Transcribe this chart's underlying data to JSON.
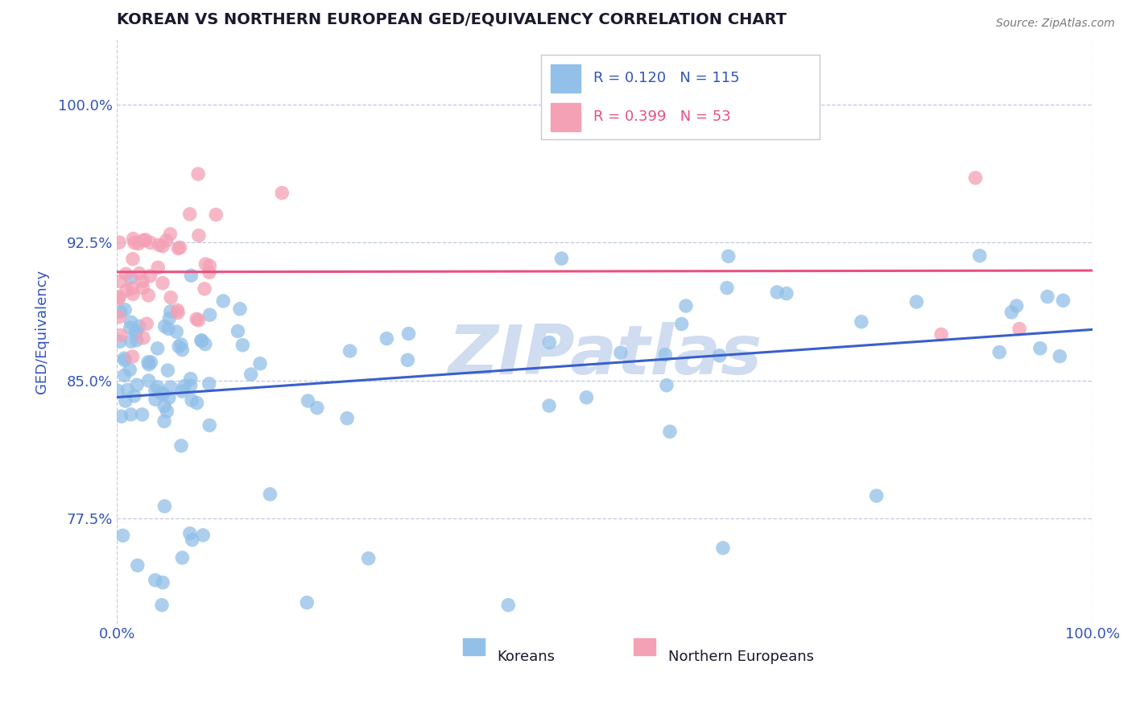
{
  "title": "KOREAN VS NORTHERN EUROPEAN GED/EQUIVALENCY CORRELATION CHART",
  "source": "Source: ZipAtlas.com",
  "ylabel": "GED/Equivalency",
  "xmin": 0.0,
  "xmax": 1.0,
  "ymin": 0.718,
  "ymax": 1.035,
  "yticks": [
    0.775,
    0.85,
    0.925,
    1.0
  ],
  "ytick_labels": [
    "77.5%",
    "85.0%",
    "92.5%",
    "100.0%"
  ],
  "xtick_labels": [
    "0.0%",
    "100.0%"
  ],
  "korean_R": 0.12,
  "korean_N": 115,
  "northern_R": 0.399,
  "northern_N": 53,
  "korean_color": "#92C0E8",
  "northern_color": "#F4A0B5",
  "korean_line_color": "#3A5FCC",
  "northern_line_color": "#E85080",
  "legend_korean_label": "Koreans",
  "legend_northern_label": "Northern Europeans",
  "title_color": "#1a1a2e",
  "tick_color": "#3355BB",
  "grid_color": "#C0C8E0",
  "background_color": "#FFFFFF",
  "watermark": "ZIPatlas",
  "watermark_color": "#D0DCF0"
}
